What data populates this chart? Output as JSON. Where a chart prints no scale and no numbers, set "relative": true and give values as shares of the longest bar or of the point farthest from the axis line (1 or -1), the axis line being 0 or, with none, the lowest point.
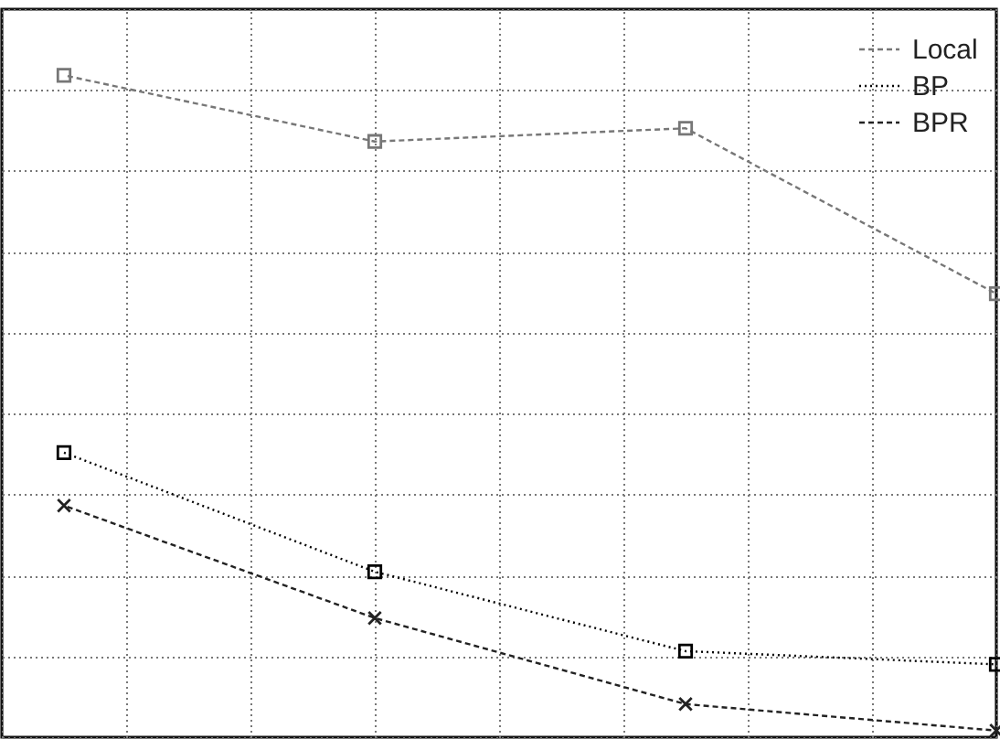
{
  "chart_data": {
    "type": "line",
    "relative": true,
    "categories": [
      null,
      null,
      null,
      null
    ],
    "series": [
      {
        "name": "Local",
        "color": "#777777",
        "marker": "square",
        "line_style": "dashed",
        "values": [
          1,
          0.9,
          0.92,
          0.67
        ]
      },
      {
        "name": "BP",
        "color": "#000000",
        "marker": "square",
        "line_style": "dotted",
        "values": [
          0.43,
          0.25,
          0.13,
          0.11
        ]
      },
      {
        "name": "BPR",
        "color": "#222222",
        "marker": "cross",
        "line_style": "dashed",
        "values": [
          0.35,
          0.18,
          0.05,
          0.01
        ]
      }
    ],
    "grid": true,
    "legend": "top right"
  }
}
